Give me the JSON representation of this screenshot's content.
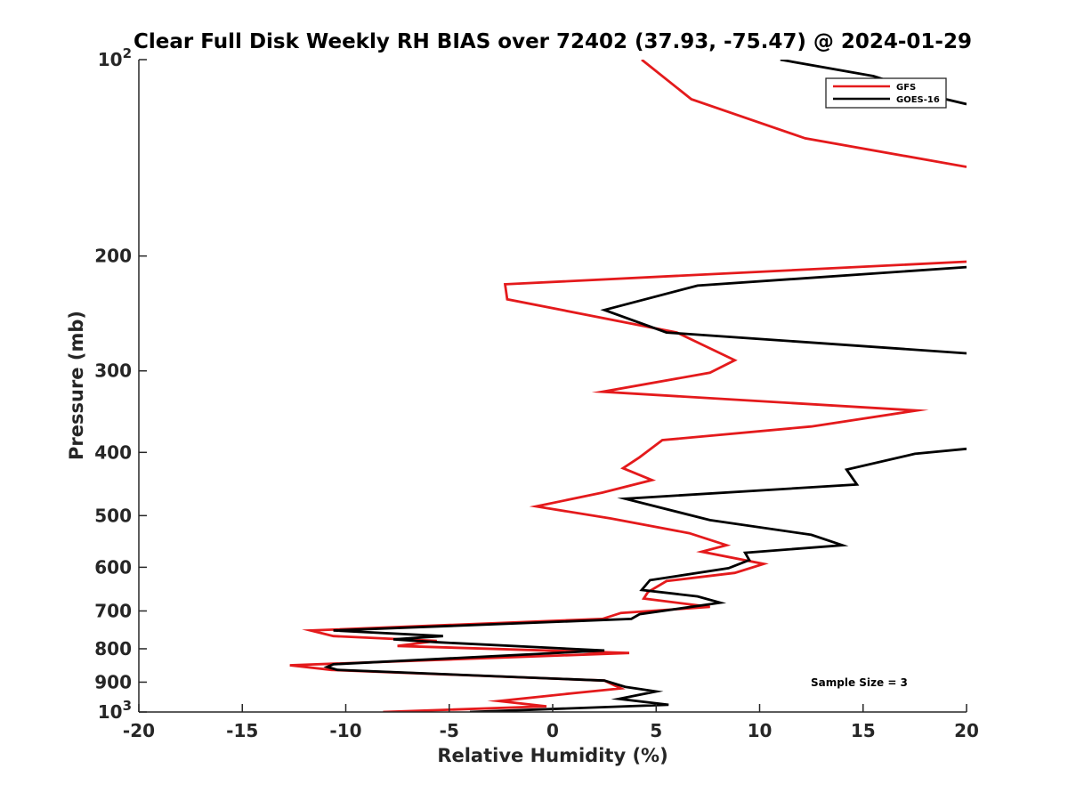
{
  "chart_data": {
    "type": "line",
    "title": "Clear Full Disk Weekly RH BIAS over 72402 (37.93, -75.47) @ 2024-01-29",
    "xlabel": "Relative Humidity (%)",
    "ylabel": "Pressure (mb)",
    "xlim": [
      -20,
      20
    ],
    "ylim": [
      100,
      1000
    ],
    "yscale": "log",
    "y_reversed": true,
    "x_ticks": [
      -20,
      -15,
      -10,
      -5,
      0,
      5,
      10,
      15,
      20
    ],
    "x_tick_labels": [
      "-20",
      "-15",
      "-10",
      "-5",
      "0",
      "5",
      "10",
      "15",
      "20"
    ],
    "y_ticks": [
      {
        "value": 100,
        "base": "10",
        "exp": "2"
      },
      {
        "value": 200,
        "label": "200"
      },
      {
        "value": 300,
        "label": "300"
      },
      {
        "value": 400,
        "label": "400"
      },
      {
        "value": 500,
        "label": "500"
      },
      {
        "value": 600,
        "label": "600"
      },
      {
        "value": 700,
        "label": "700"
      },
      {
        "value": 800,
        "label": "800"
      },
      {
        "value": 900,
        "label": "900"
      },
      {
        "value": 1000,
        "base": "10",
        "exp": "3"
      }
    ],
    "legend_position": "top-right",
    "annotation": "Sample Size = 3",
    "series": [
      {
        "name": "GFS",
        "color": "#e41a1c",
        "x": [
          4.3,
          6.7,
          12.2,
          20.0,
          null,
          20.0,
          -2.3,
          -2.2,
          6.0,
          8.8,
          7.6,
          2.4,
          17.6,
          12.5,
          5.3,
          4.2,
          3.4,
          4.8,
          2.4,
          -0.8,
          2.8,
          6.6,
          8.4,
          7.2,
          10.2,
          8.8,
          5.5,
          4.6,
          4.4,
          7.6,
          3.3,
          2.4,
          -11.7,
          -10.6,
          -5.6,
          -7.5,
          3.7,
          -12.7,
          -10.7,
          2.5,
          3.3,
          1.1,
          -2.6,
          -0.3,
          -8.2
        ],
        "y": [
          100,
          115,
          132,
          146,
          null,
          204,
          221,
          233,
          262,
          289,
          302,
          323,
          345,
          365,
          383,
          407,
          423,
          441,
          461,
          484,
          505,
          532,
          555,
          568,
          593,
          612,
          630,
          655,
          670,
          690,
          705,
          720,
          750,
          765,
          778,
          792,
          812,
          848,
          862,
          895,
          920,
          935,
          962,
          980,
          1000
        ]
      },
      {
        "name": "GOES-16",
        "color": "#000000",
        "x": [
          11.0,
          15.5,
          19.0,
          20.0,
          null,
          20.0,
          7.0,
          2.5,
          5.5,
          20.0,
          null,
          20.0,
          17.5,
          14.2,
          14.7,
          3.5,
          7.6,
          12.5,
          14.0,
          9.3,
          9.5,
          8.5,
          4.7,
          4.3,
          7.0,
          8.1,
          4.2,
          3.8,
          -10.6,
          -5.3,
          -7.7,
          -5.5,
          2.5,
          -10.6,
          -10.9,
          -10.4,
          2.5,
          3.5,
          5.0,
          3.2,
          5.6,
          -4.0
        ],
        "y": [
          100,
          106,
          115,
          117,
          null,
          208,
          222,
          242,
          262,
          282,
          null,
          395,
          402,
          425,
          448,
          471,
          508,
          535,
          555,
          570,
          585,
          602,
          628,
          650,
          665,
          680,
          708,
          720,
          750,
          765,
          774,
          782,
          805,
          845,
          853,
          862,
          895,
          915,
          930,
          955,
          975,
          1000
        ]
      }
    ]
  }
}
